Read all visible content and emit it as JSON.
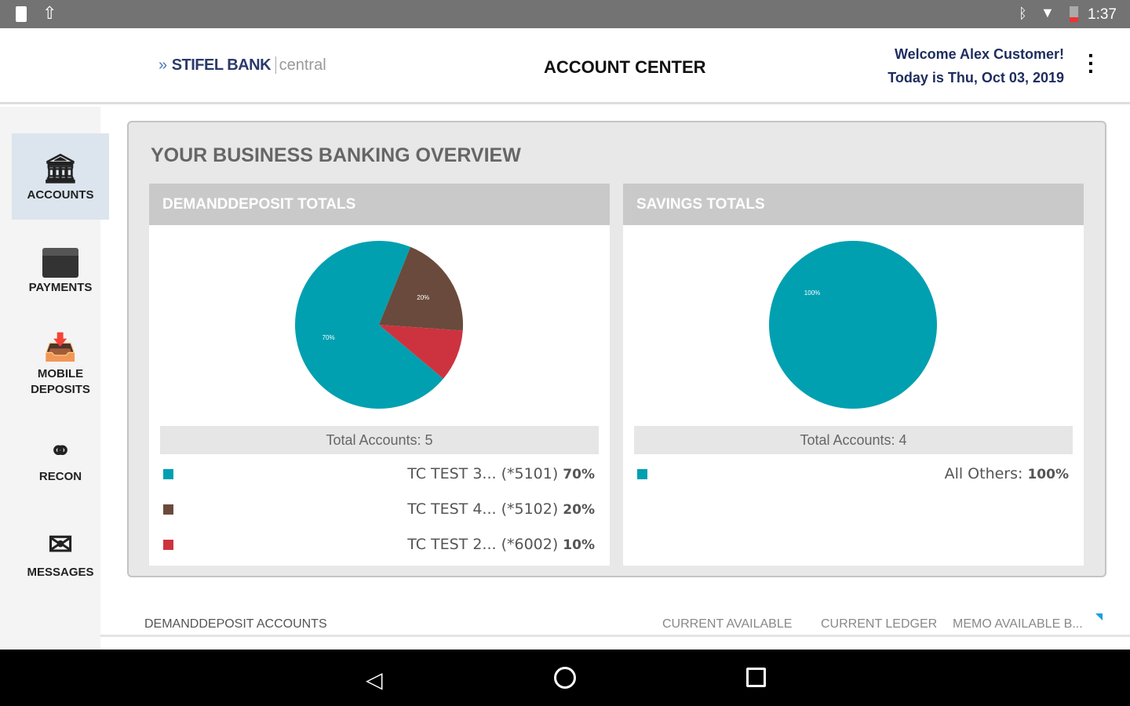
{
  "status_bar": {
    "time": "1:37"
  },
  "header": {
    "logo_brand": "STIFEL BANK",
    "logo_sub": "central",
    "title": "ACCOUNT CENTER",
    "welcome": "Welcome Alex Customer!",
    "date": "Today is Thu, Oct 03, 2019"
  },
  "sidebar": {
    "items": [
      {
        "label": "ACCOUNTS"
      },
      {
        "label": "PAYMENTS"
      },
      {
        "label": "MOBILE DEPOSITS"
      },
      {
        "label": "RECON"
      },
      {
        "label": "MESSAGES"
      }
    ]
  },
  "overview": {
    "title": "YOUR BUSINESS BANKING OVERVIEW"
  },
  "colors": {
    "teal": "#00a0b0",
    "brown": "#6a4a3c",
    "red": "#cc333f"
  },
  "chart_data": [
    {
      "type": "pie",
      "title": "DEMANDDEPOSIT TOTALS",
      "total_label": "Total Accounts: 5",
      "slices": [
        {
          "name": "TC TEST 3...",
          "acct": "(*5101)",
          "value": 70,
          "label": "70%",
          "color": "#00a0b0"
        },
        {
          "name": "TC TEST 4...",
          "acct": "(*5102)",
          "value": 20,
          "label": "20%",
          "color": "#6a4a3c"
        },
        {
          "name": "TC TEST 2...",
          "acct": "(*6002)",
          "value": 10,
          "label": "10%",
          "color": "#cc333f"
        }
      ]
    },
    {
      "type": "pie",
      "title": "SAVINGS TOTALS",
      "total_label": "Total Accounts: 4",
      "slices": [
        {
          "name": "All Others:",
          "acct": "",
          "value": 100,
          "label": "100%",
          "color": "#00a0b0"
        }
      ]
    }
  ],
  "accounts_table": {
    "title": "DEMANDDEPOSIT ACCOUNTS",
    "columns": [
      "CURRENT AVAILABLE",
      "CURRENT LEDGER",
      "MEMO AVAILABLE B..."
    ]
  }
}
